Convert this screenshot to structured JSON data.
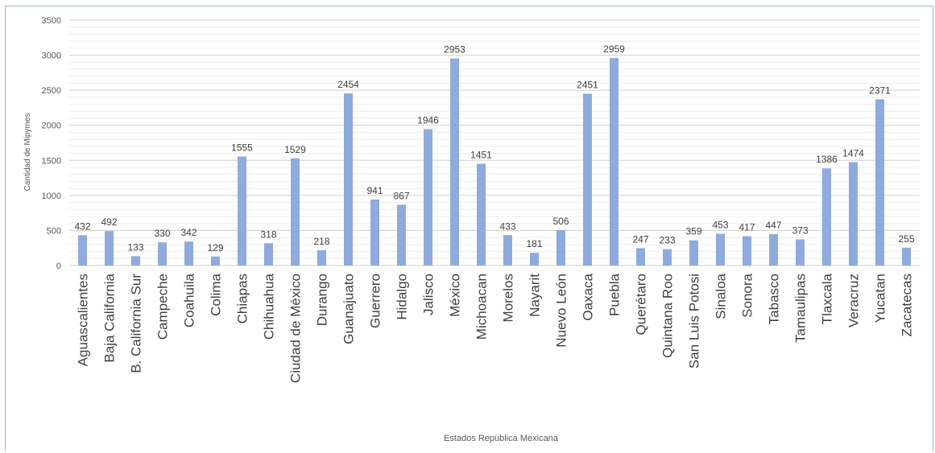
{
  "chart_data": {
    "type": "bar",
    "title": "",
    "xlabel": "Estados Republica Mexicana",
    "ylabel": "Cantidad de Mipymes",
    "ylim": [
      0,
      3500
    ],
    "yticks": [
      0,
      500,
      1000,
      1500,
      2000,
      2500,
      3000,
      3500
    ],
    "grid": true,
    "legend": "none",
    "bar_color": "#8faadc",
    "categories": [
      "Aguascalientes",
      "Baja California",
      "B. California Sur",
      "Campeche",
      "Coahuila",
      "Colima",
      "Chiapas",
      "Chihuahua",
      "Ciudad de México",
      "Durango",
      "Guanajuato",
      "Guerrero",
      "Hidalgo",
      "Jalisco",
      "México",
      "Michoacan",
      "Morelos",
      "Nayarit",
      "Nuevo León",
      "Oaxaca",
      "Puebla",
      "Querétaro",
      "Quintana Roo",
      "San Luis Potosi",
      "Sinaloa",
      "Sonora",
      "Tabasco",
      "Tamaulipas",
      "Tlaxcala",
      "Veracruz",
      "Yucatan",
      "Zacatecas"
    ],
    "values": [
      432,
      492,
      133,
      330,
      342,
      129,
      1555,
      318,
      1529,
      218,
      2454,
      941,
      867,
      1946,
      2953,
      1451,
      433,
      181,
      506,
      2451,
      2959,
      247,
      233,
      359,
      453,
      417,
      447,
      373,
      1386,
      1474,
      2371,
      255
    ]
  }
}
